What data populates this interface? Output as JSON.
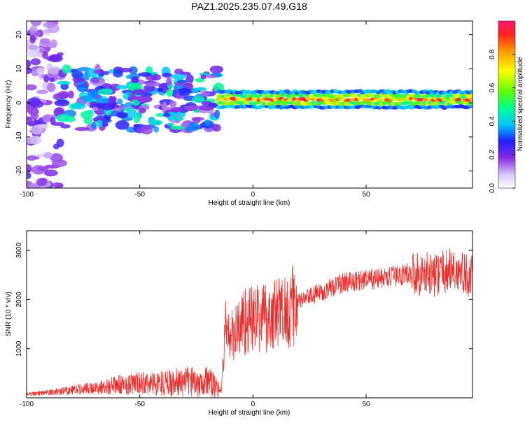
{
  "title": "PAZ1.2025.235.07.49.G18",
  "chart_data": [
    {
      "type": "heatmap",
      "xlabel": "Height of straight line (km)",
      "ylabel": "Frequency (Hz)",
      "xlim": [
        -100,
        97
      ],
      "ylim": [
        -25,
        24
      ],
      "xticks": [
        -100,
        -50,
        0,
        50
      ],
      "yticks": [
        -20,
        -10,
        0,
        10,
        20
      ],
      "colorbar": {
        "label": "Normalized spectral amplitude",
        "range": [
          0,
          1
        ],
        "ticks": [
          "0.0",
          "0.2",
          "0.4",
          "0.6",
          "0.8"
        ]
      },
      "features": [
        {
          "x_range": [
            -100,
            -85
          ],
          "freq_range": [
            -25,
            24
          ],
          "amplitude": 0.15,
          "description": "scattered low amplitude"
        },
        {
          "x_range": [
            -85,
            -15
          ],
          "freq_range": [
            -8,
            10
          ],
          "amplitude": 0.3,
          "description": "broad band"
        },
        {
          "x_range": [
            -15,
            97
          ],
          "freq_center": 1,
          "freq_halfwidth": 2,
          "amplitude": 0.85,
          "description": "narrow band"
        }
      ]
    },
    {
      "type": "line",
      "xlabel": "Height of straight line (km)",
      "ylabel": "SNR (10 * v/v)",
      "xlim": [
        -100,
        97
      ],
      "ylim": [
        0,
        3400
      ],
      "xticks": [
        -100,
        -50,
        0,
        50
      ],
      "yticks": [
        1000,
        2000,
        3000
      ],
      "color": "#e8302e",
      "anchors": {
        "x": [
          -100,
          -90,
          -80,
          -70,
          -60,
          -50,
          -40,
          -30,
          -20,
          -16,
          -14,
          -12,
          -10,
          -8,
          -5,
          0,
          5,
          10,
          15,
          20,
          30,
          40,
          50,
          60,
          70,
          80,
          88,
          97
        ],
        "y": [
          80,
          110,
          160,
          200,
          260,
          290,
          300,
          320,
          350,
          200,
          150,
          1500,
          1200,
          1300,
          1550,
          1600,
          1650,
          1700,
          1800,
          1950,
          2150,
          2350,
          2400,
          2450,
          2550,
          2500,
          2600,
          2450
        ]
      }
    }
  ]
}
